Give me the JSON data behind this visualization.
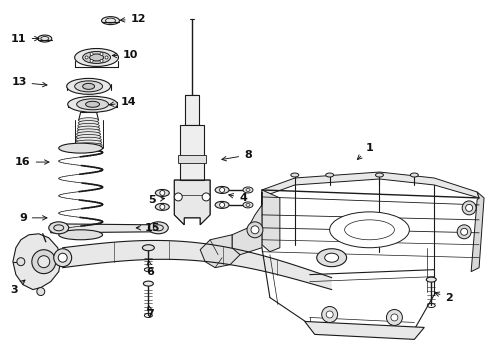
{
  "bg": "#ffffff",
  "lc": "#1a1a1a",
  "fig_w": 4.9,
  "fig_h": 3.6,
  "dpi": 100,
  "label_positions": {
    "1": [
      370,
      148,
      355,
      162
    ],
    "2": [
      450,
      298,
      432,
      292
    ],
    "3": [
      13,
      290,
      27,
      278
    ],
    "4": [
      243,
      198,
      225,
      194
    ],
    "5": [
      152,
      200,
      168,
      198
    ],
    "6": [
      150,
      272,
      148,
      260
    ],
    "7": [
      150,
      315,
      148,
      305
    ],
    "8": [
      248,
      155,
      218,
      160
    ],
    "9": [
      22,
      218,
      50,
      218
    ],
    "10": [
      130,
      55,
      108,
      55
    ],
    "11": [
      18,
      38,
      42,
      38
    ],
    "12": [
      138,
      18,
      116,
      20
    ],
    "13": [
      18,
      82,
      50,
      85
    ],
    "14": [
      128,
      102,
      105,
      105
    ],
    "15": [
      152,
      228,
      132,
      228
    ],
    "16": [
      22,
      162,
      52,
      162
    ]
  }
}
